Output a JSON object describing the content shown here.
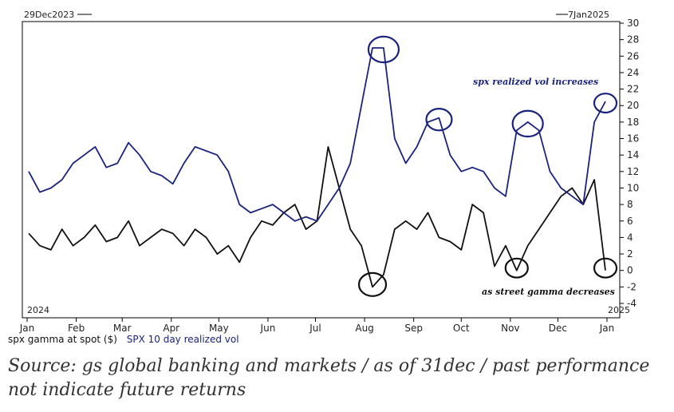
{
  "chart_data": {
    "type": "line",
    "date_range": {
      "start_label": "29Dec2023",
      "end_label": "7Jan2025"
    },
    "x_tick_labels": [
      "Jan",
      "Feb",
      "Mar",
      "Apr",
      "May",
      "Jun",
      "Jul",
      "Aug",
      "Sep",
      "Oct",
      "Nov",
      "Dec",
      "Jan"
    ],
    "year_labels": {
      "left": "2024",
      "right": "2025"
    },
    "y_tick_labels": [
      "30",
      "28",
      "26",
      "24",
      "22",
      "20",
      "18",
      "16",
      "14",
      "12",
      "10",
      "8",
      "6",
      "4",
      "2",
      "0",
      "-2",
      "-4"
    ],
    "ylim": [
      -4,
      30
    ],
    "grid": false,
    "legend": "bottom-left",
    "series": [
      {
        "name": "spx gamma at spot ($)",
        "color": "#111111",
        "x": [
          "2024-01-02",
          "2024-01-09",
          "2024-01-16",
          "2024-01-23",
          "2024-01-30",
          "2024-02-06",
          "2024-02-13",
          "2024-02-20",
          "2024-02-27",
          "2024-03-05",
          "2024-03-12",
          "2024-03-19",
          "2024-03-26",
          "2024-04-02",
          "2024-04-09",
          "2024-04-16",
          "2024-04-23",
          "2024-04-30",
          "2024-05-07",
          "2024-05-14",
          "2024-05-21",
          "2024-05-28",
          "2024-06-04",
          "2024-06-11",
          "2024-06-18",
          "2024-06-25",
          "2024-07-02",
          "2024-07-09",
          "2024-07-16",
          "2024-07-23",
          "2024-07-30",
          "2024-08-06",
          "2024-08-13",
          "2024-08-20",
          "2024-08-27",
          "2024-09-03",
          "2024-09-10",
          "2024-09-17",
          "2024-09-24",
          "2024-10-01",
          "2024-10-08",
          "2024-10-15",
          "2024-10-22",
          "2024-10-29",
          "2024-11-05",
          "2024-11-12",
          "2024-11-19",
          "2024-11-26",
          "2024-12-03",
          "2024-12-10",
          "2024-12-17",
          "2024-12-24",
          "2024-12-31"
        ],
        "values": [
          4.5,
          3,
          2.5,
          5,
          3,
          4,
          5.5,
          3.5,
          4,
          6,
          3,
          4,
          5,
          4.5,
          3,
          5,
          4,
          2,
          3,
          1,
          4,
          6,
          5.5,
          7,
          8,
          5,
          6,
          15,
          10,
          5,
          3,
          -2,
          -0.5,
          5,
          6,
          5,
          7,
          4,
          3.5,
          2.5,
          8,
          7,
          0.5,
          3,
          0,
          3,
          5,
          7,
          9,
          10,
          8,
          11,
          0
        ]
      },
      {
        "name": "SPX 10 day realized vol",
        "color": "#1a237e",
        "x": [
          "2024-01-02",
          "2024-01-09",
          "2024-01-16",
          "2024-01-23",
          "2024-01-30",
          "2024-02-06",
          "2024-02-13",
          "2024-02-20",
          "2024-02-27",
          "2024-03-05",
          "2024-03-12",
          "2024-03-19",
          "2024-03-26",
          "2024-04-02",
          "2024-04-09",
          "2024-04-16",
          "2024-04-23",
          "2024-04-30",
          "2024-05-07",
          "2024-05-14",
          "2024-05-21",
          "2024-05-28",
          "2024-06-04",
          "2024-06-11",
          "2024-06-18",
          "2024-06-25",
          "2024-07-02",
          "2024-07-09",
          "2024-07-16",
          "2024-07-23",
          "2024-07-30",
          "2024-08-06",
          "2024-08-13",
          "2024-08-20",
          "2024-08-27",
          "2024-09-03",
          "2024-09-10",
          "2024-09-17",
          "2024-09-24",
          "2024-10-01",
          "2024-10-08",
          "2024-10-15",
          "2024-10-22",
          "2024-10-29",
          "2024-11-05",
          "2024-11-12",
          "2024-11-19",
          "2024-11-26",
          "2024-12-03",
          "2024-12-10",
          "2024-12-17",
          "2024-12-24",
          "2024-12-31"
        ],
        "values": [
          12,
          9.5,
          10,
          11,
          13,
          14,
          15,
          12.5,
          13,
          15.5,
          14,
          12,
          11.5,
          10.5,
          13,
          15,
          14.5,
          14,
          12,
          8,
          7,
          7.5,
          8,
          7,
          6,
          6.5,
          6,
          8,
          10,
          13,
          20,
          27,
          27,
          16,
          13,
          15,
          18,
          18.5,
          14,
          12,
          12.5,
          12,
          10,
          9,
          17,
          18,
          17,
          12,
          10,
          9,
          8,
          18,
          20.5
        ]
      }
    ],
    "annotations": [
      {
        "text": "spx realized vol increases",
        "color": "#1a237e",
        "position": "upper-right"
      },
      {
        "text": "as street gamma decreases",
        "color": "#111111",
        "position": "lower-right"
      }
    ]
  },
  "source_note": "Source: gs global banking and markets / as of 31dec / past performance not indicate future returns",
  "colors": {
    "gamma": "#111111",
    "vol": "#1a237e",
    "frame": "#000000"
  }
}
